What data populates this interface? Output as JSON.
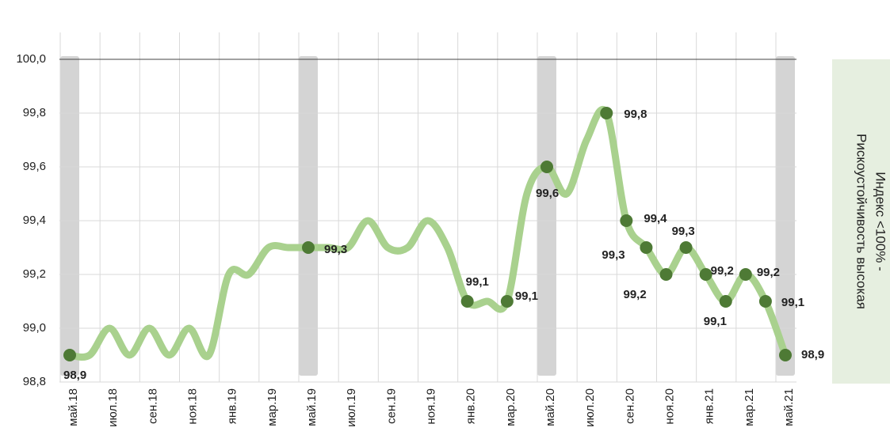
{
  "chart_data": {
    "type": "line",
    "categories": [
      "май.18",
      null,
      "июл.18",
      null,
      "сен.18",
      null,
      "ноя.18",
      null,
      "янв.19",
      null,
      "мар.19",
      null,
      "май.19",
      null,
      "июл.19",
      null,
      "сен.19",
      null,
      "ноя.19",
      null,
      "янв.20",
      null,
      "мар.20",
      null,
      "май.20",
      null,
      "июл.20",
      null,
      "сен.20",
      null,
      "ноя.20",
      null,
      "янв.21",
      null,
      "мар.21",
      null,
      "май.21"
    ],
    "series": [
      {
        "color": "#a9d18e",
        "marker_color": "#4e7a35",
        "values": [
          98.9,
          98.9,
          99.0,
          98.9,
          99.0,
          98.9,
          99.0,
          98.9,
          99.2,
          99.2,
          99.3,
          99.3,
          99.3,
          99.3,
          99.3,
          99.4,
          99.3,
          99.3,
          99.4,
          99.3,
          99.1,
          99.1,
          99.1,
          99.5,
          99.6,
          99.5,
          99.7,
          99.8,
          99.4,
          99.3,
          99.2,
          99.3,
          99.2,
          99.1,
          99.2,
          99.1,
          98.9
        ],
        "value_labels": [
          "98,9",
          null,
          null,
          null,
          null,
          null,
          null,
          null,
          null,
          null,
          null,
          null,
          "99,3",
          null,
          null,
          null,
          null,
          null,
          null,
          null,
          "99,1",
          null,
          "99,1",
          null,
          "99,6",
          null,
          null,
          "99,8",
          "99,4",
          "99,3",
          "99,2",
          "99,3",
          "99,2",
          "99,1",
          "99,2",
          "99,1",
          "98,9"
        ]
      }
    ],
    "ylim": [
      98.8,
      100.1
    ],
    "yticks": [
      {
        "value": 98.8,
        "label": "98,8"
      },
      {
        "value": 99.0,
        "label": "99,0"
      },
      {
        "value": 99.2,
        "label": "99,2"
      },
      {
        "value": 99.4,
        "label": "99,4"
      },
      {
        "value": 99.6,
        "label": "99,6"
      },
      {
        "value": 99.8,
        "label": "99,8"
      },
      {
        "value": 100.0,
        "label": "100,0"
      }
    ],
    "annotation": [
      "Индекс <100% -",
      "Рискоустойчивость высокая"
    ],
    "grid": true
  }
}
